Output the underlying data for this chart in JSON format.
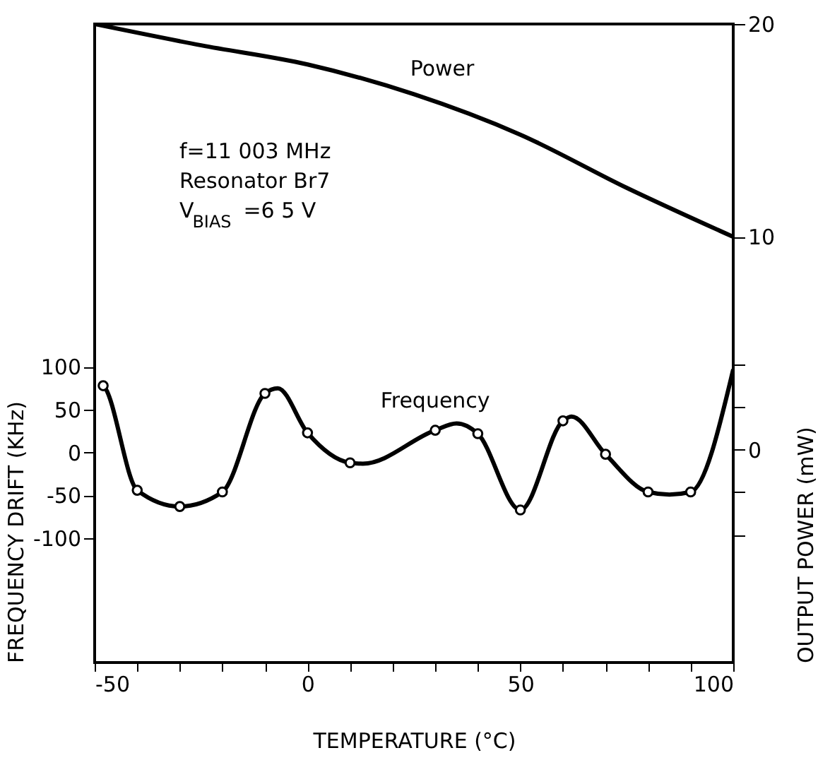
{
  "chart_data": {
    "type": "line",
    "xlabel": "TEMPERATURE (°C)",
    "ylabel": "FREQUENCY DRIFT (KHz)",
    "y2label": "OUTPUT POWER (mW)",
    "xlim": [
      -50,
      100
    ],
    "xticks": [
      -50,
      {
        "value": -40,
        "label": null
      },
      {
        "value": -30,
        "label": null
      },
      {
        "value": -20,
        "label": null
      },
      {
        "value": -10,
        "label": null
      },
      0,
      {
        "value": 10,
        "label": null
      },
      {
        "value": 20,
        "label": null
      },
      {
        "value": 30,
        "label": null
      },
      {
        "value": 40,
        "label": null
      },
      50,
      {
        "value": 60,
        "label": null
      },
      {
        "value": 70,
        "label": null
      },
      {
        "value": 80,
        "label": null
      },
      {
        "value": 90,
        "label": null
      },
      100
    ],
    "ylim": [
      -245,
      500
    ],
    "yticks": [
      -100,
      -50,
      0,
      50,
      100
    ],
    "y2lim": [
      -10,
      20
    ],
    "y2ticks": [
      {
        "value": -4,
        "label": null
      },
      {
        "value": -2,
        "label": null
      },
      0,
      {
        "value": 2,
        "label": null
      },
      {
        "value": 4,
        "label": null
      },
      10,
      20
    ],
    "series": [
      {
        "name": "Frequency",
        "type": "line",
        "color": "#000000",
        "marker": "none",
        "x": [
          -49,
          -48,
          -40,
          -30,
          -20,
          -10,
          -7,
          0,
          10,
          13,
          30,
          35,
          40,
          50,
          60,
          62,
          70,
          80,
          85,
          90,
          100
        ],
        "values": [
          80,
          78,
          -44,
          -63,
          -46,
          69,
          75,
          23,
          -12,
          -13,
          26,
          34,
          22,
          -67,
          37,
          42,
          -2,
          -46,
          -49,
          -46,
          97
        ]
      },
      {
        "type": "scatter",
        "color": "#000000",
        "marker": "circle",
        "x": [
          -48,
          -40,
          -30,
          -20,
          -10,
          0,
          10,
          30,
          40,
          50,
          60,
          70,
          80,
          90
        ],
        "values": [
          78,
          -44,
          -63,
          -46,
          69,
          23,
          -12,
          26,
          22,
          -67,
          37,
          -2,
          -46,
          -46
        ]
      },
      {
        "name": "Power",
        "type": "line",
        "axis": "y2",
        "color": "#000000",
        "marker": "none",
        "x": [
          -50,
          -25,
          0,
          25,
          50,
          75,
          100
        ],
        "values": [
          20,
          19.0,
          18.1,
          16.7,
          14.8,
          12.3,
          10
        ]
      }
    ],
    "annotations": [
      "f=11 003 MHz",
      "Resonator   Br7",
      "V$_{BIAS}$ =6 5 V"
    ],
    "grid": false,
    "legend": false,
    "line_style": "solid"
  }
}
